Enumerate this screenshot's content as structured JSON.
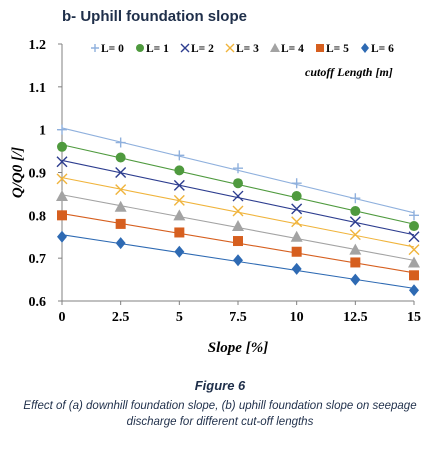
{
  "panel_title": "b- Uphill foundation slope",
  "figure_label": "Figure 6",
  "caption": "Effect of (a) downhill foundation slope, (b) uphill foundation slope on seepage discharge for different cut-off lengths",
  "legend_note": "cutoff Length [m]",
  "chart_data": {
    "type": "scatter",
    "xlabel": "Slope [%]",
    "ylabel": "Q/Q0 [/]",
    "xlim": [
      0,
      15
    ],
    "ylim": [
      0.6,
      1.2
    ],
    "x_ticks": [
      "0",
      "2.5",
      "5",
      "7.5",
      "10",
      "12.5",
      "15"
    ],
    "y_ticks": [
      "0.6",
      "0.7",
      "0.8",
      "0.9",
      "1",
      "1.1",
      "1.2"
    ],
    "x": [
      0,
      2.5,
      5,
      7.5,
      10,
      12.5,
      15
    ],
    "grid": false,
    "legend_position": "top",
    "trendlines": true,
    "series": [
      {
        "name": "L= 0",
        "marker": "plus",
        "color": "#8fb0dd",
        "values": [
          1.0,
          0.97,
          0.94,
          0.91,
          0.875,
          0.84,
          0.8
        ]
      },
      {
        "name": "L= 1",
        "marker": "circle",
        "color": "#4f9a3e",
        "values": [
          0.96,
          0.935,
          0.905,
          0.875,
          0.845,
          0.81,
          0.775
        ]
      },
      {
        "name": "L= 2",
        "marker": "x",
        "color": "#2d3d8f",
        "values": [
          0.925,
          0.9,
          0.87,
          0.845,
          0.815,
          0.785,
          0.75
        ]
      },
      {
        "name": "L= 3",
        "marker": "x",
        "color": "#f0b43c",
        "values": [
          0.885,
          0.86,
          0.835,
          0.81,
          0.785,
          0.755,
          0.72
        ]
      },
      {
        "name": "L= 4",
        "marker": "triangle",
        "color": "#a3a3a3",
        "values": [
          0.845,
          0.82,
          0.8,
          0.775,
          0.75,
          0.72,
          0.69
        ]
      },
      {
        "name": "L= 5",
        "marker": "square",
        "color": "#d65f1f",
        "values": [
          0.8,
          0.78,
          0.76,
          0.74,
          0.715,
          0.69,
          0.66
        ]
      },
      {
        "name": "L= 6",
        "marker": "diamond",
        "color": "#2e6ab3",
        "values": [
          0.75,
          0.735,
          0.715,
          0.695,
          0.675,
          0.65,
          0.625
        ]
      }
    ]
  }
}
